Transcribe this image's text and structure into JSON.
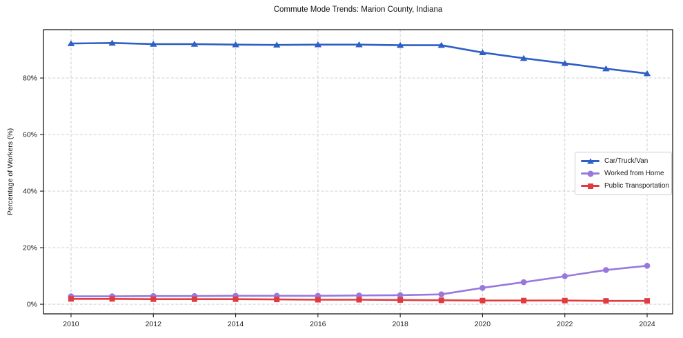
{
  "chart_data": {
    "type": "line",
    "title": "Commute Mode Trends: Marion County, Indiana",
    "xlabel": "",
    "ylabel": "Percentage of Workers (%)",
    "grid": true,
    "legend_position": "center-right",
    "x": [
      2010,
      2011,
      2012,
      2013,
      2014,
      2015,
      2016,
      2017,
      2018,
      2019,
      2020,
      2021,
      2022,
      2023,
      2024
    ],
    "series": [
      {
        "name": "Car/Truck/Van",
        "color": "#2e5fc4",
        "marker": "triangle",
        "values": [
          92.2,
          92.4,
          92.0,
          92.0,
          91.8,
          91.7,
          91.8,
          91.8,
          91.6,
          91.6,
          89.0,
          87.0,
          85.2,
          83.3,
          81.6
        ]
      },
      {
        "name": "Worked from Home",
        "color": "#9878dd",
        "marker": "circle",
        "values": [
          2.8,
          2.8,
          2.9,
          2.9,
          3.0,
          3.0,
          3.0,
          3.1,
          3.2,
          3.5,
          5.8,
          7.8,
          9.9,
          12.1,
          13.6
        ]
      },
      {
        "name": "Public Transportation",
        "color": "#e23b3f",
        "marker": "square",
        "values": [
          1.9,
          1.9,
          1.8,
          1.8,
          1.8,
          1.7,
          1.6,
          1.6,
          1.5,
          1.4,
          1.3,
          1.3,
          1.3,
          1.2,
          1.2
        ]
      }
    ],
    "xticks": [
      2010,
      2012,
      2014,
      2016,
      2018,
      2020,
      2022,
      2024
    ],
    "xtick_labels": [
      "2010",
      "2012",
      "2014",
      "2016",
      "2018",
      "2020",
      "2022",
      "2024"
    ],
    "yticks": [
      0,
      20,
      40,
      60,
      80
    ],
    "ytick_labels": [
      "0%",
      "20%",
      "40%",
      "60%",
      "80%"
    ],
    "xlim": [
      2009.33,
      2024.62
    ],
    "ylim": [
      -3.4,
      97.1
    ]
  }
}
